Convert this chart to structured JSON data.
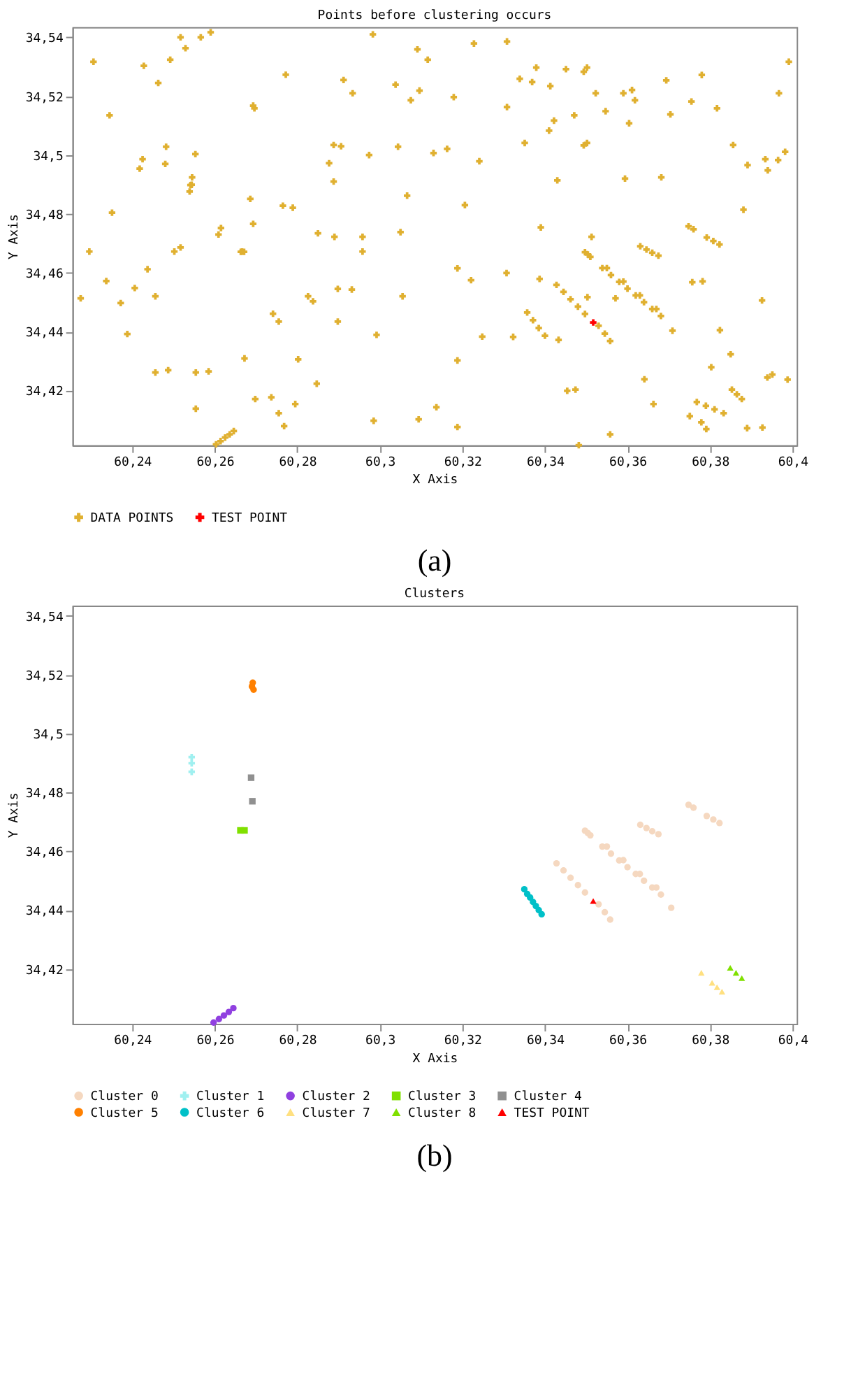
{
  "chart_data": [
    {
      "type": "scatter",
      "title": "Points before clustering occurs",
      "xlabel": "X Axis",
      "ylabel": "Y Axis",
      "xlim": [
        60.2255,
        60.401
      ],
      "ylim": [
        34.4014,
        34.5435
      ],
      "xticks": [
        {
          "value": 60.24,
          "label": "60,24"
        },
        {
          "value": 60.26,
          "label": "60,26"
        },
        {
          "value": 60.28,
          "label": "60,28"
        },
        {
          "value": 60.3,
          "label": "60,3"
        },
        {
          "value": 60.32,
          "label": "60,32"
        },
        {
          "value": 60.34,
          "label": "60,34"
        },
        {
          "value": 60.36,
          "label": "60,36"
        },
        {
          "value": 60.38,
          "label": "60,38"
        },
        {
          "value": 60.4,
          "label": "60,4"
        }
      ],
      "yticks": [
        {
          "value": 34.42,
          "label": "34,42"
        },
        {
          "value": 34.44,
          "label": "34,44"
        },
        {
          "value": 34.46,
          "label": "34,46"
        },
        {
          "value": 34.48,
          "label": "34,48"
        },
        {
          "value": 34.5,
          "label": "34,5"
        },
        {
          "value": 34.52,
          "label": "34,52"
        },
        {
          "value": 34.54,
          "label": "34,54"
        }
      ],
      "grid": false,
      "legend": "bottom",
      "annotations": [
        "(a)"
      ],
      "series": [
        {
          "name": "DATA POINTS",
          "color": "#e0b030",
          "marker": "cross",
          "x": [
            60.2306,
            60.2345,
            60.2351,
            60.2296,
            60.2428,
            60.2463,
            60.2425,
            60.2418,
            60.2482,
            60.248,
            60.2492,
            60.2517,
            60.2566,
            60.259,
            60.2529,
            60.2553,
            60.2545,
            60.2541,
            60.2539,
            60.2615,
            60.2609,
            60.2517,
            60.2502,
            60.2696,
            60.2693,
            60.2686,
            60.2693,
            60.2666,
            60.2772,
            60.2765,
            60.2789,
            60.285,
            60.289,
            60.2888,
            60.2906,
            60.2888,
            60.2877,
            60.2912,
            60.2934,
            60.2958,
            60.2958,
            60.2974,
            60.2983,
            60.3038,
            60.3044,
            60.3066,
            60.305,
            60.3091,
            60.3096,
            60.3075,
            60.3116,
            60.313,
            60.3163,
            60.3179,
            60.3206,
            60.3228,
            60.3241,
            60.3308,
            60.3308,
            60.3339,
            60.3351,
            60.3369,
            60.3379,
            60.339,
            60.341,
            60.3413,
            60.3422,
            60.343,
            60.3451,
            60.3471,
            60.3494,
            60.3502,
            60.3494,
            60.3502,
            60.3513,
            60.3523,
            60.3547,
            60.359,
            60.3594,
            60.3604,
            60.3611,
            60.3618,
            60.3682,
            60.3694,
            60.3704,
            60.3755,
            60.378,
            60.3817,
            60.3856,
            60.3881,
            60.3891,
            60.3934,
            60.394,
            60.3965,
            60.3982,
            60.3967,
            60.3991,
            60.2275,
            60.2337,
            60.2372,
            60.2406,
            60.2388,
            60.2437,
            60.2456,
            60.2456,
            60.2487,
            60.2554,
            60.2554,
            60.2585,
            60.2603,
            60.2614,
            60.2625,
            60.2636,
            60.2646,
            60.2672,
            60.2698,
            60.2741,
            60.2755,
            60.2737,
            60.2755,
            60.2768,
            60.2795,
            60.2802,
            60.2826,
            60.2838,
            60.2847,
            60.2898,
            60.2898,
            60.2932,
            60.2985,
            60.2992,
            60.3055,
            60.3094,
            60.3137,
            60.3188,
            60.3188,
            60.3188,
            60.3221,
            60.3248,
            60.3307,
            60.3323,
            60.3387,
            60.3433,
            60.3454,
            60.3474,
            60.3482,
            60.3503,
            60.3558,
            60.3571,
            60.3641,
            60.3663,
            60.3709,
            60.3751,
            60.3757,
            60.3779,
            60.3782,
            60.3791,
            60.3803,
            60.3824,
            60.385,
            60.3926,
            60.3988,
            60.3357,
            60.3371,
            60.3385,
            60.34,
            60.3539,
            60.356,
            60.358,
            60.36,
            60.362,
            60.364,
            60.366,
            60.3681,
            60.355,
            60.359,
            60.363,
            60.367,
            60.3428,
            60.3445,
            60.3462,
            60.348,
            60.3497,
            60.353,
            60.3545,
            60.3558,
            60.3497,
            60.3504,
            60.351,
            60.3631,
            60.3646,
            60.366,
            60.3675,
            60.3748,
            60.376,
            60.3792,
            60.3808,
            60.3823,
            60.3768,
            60.379,
            60.3811,
            60.3833,
            60.3853,
            60.3865,
            60.3877,
            60.3939,
            60.3951,
            60.389,
            60.3927,
            60.2663,
            60.2671,
            60.2544
          ],
          "values": [
            34.5317,
            34.5135,
            34.4804,
            34.4672,
            34.5303,
            34.5245,
            34.4986,
            34.4954,
            34.5028,
            34.497,
            34.5324,
            34.54,
            34.54,
            34.5417,
            34.5363,
            34.5003,
            34.4924,
            34.4898,
            34.4876,
            34.4752,
            34.473,
            34.4686,
            34.4672,
            34.5159,
            34.5168,
            34.4851,
            34.4766,
            34.4672,
            34.5273,
            34.4828,
            34.4821,
            34.4734,
            34.4722,
            34.5034,
            34.503,
            34.491,
            34.4972,
            34.5255,
            34.521,
            34.4722,
            34.4672,
            34.5,
            34.541,
            34.5239,
            34.5028,
            34.4862,
            34.4738,
            34.5359,
            34.5219,
            34.5186,
            34.5324,
            34.5007,
            34.5021,
            34.5197,
            34.483,
            34.5379,
            34.4979,
            34.5386,
            34.5163,
            34.5259,
            34.5041,
            34.5248,
            34.5297,
            34.4754,
            34.5083,
            34.5234,
            34.5117,
            34.4914,
            34.5292,
            34.5135,
            34.5283,
            34.5297,
            34.5033,
            34.5041,
            34.4722,
            34.521,
            34.5149,
            34.521,
            34.492,
            34.5108,
            34.5221,
            34.5186,
            34.4924,
            34.5254,
            34.5138,
            34.5182,
            34.5272,
            34.5159,
            34.5034,
            34.4814,
            34.4966,
            34.4986,
            34.4948,
            34.4983,
            34.5011,
            34.521,
            34.5317,
            34.4513,
            34.4572,
            34.4497,
            34.4548,
            34.4392,
            34.4612,
            34.452,
            34.4261,
            34.4269,
            34.4261,
            34.4138,
            34.4265,
            34.4017,
            34.4028,
            34.404,
            34.4051,
            34.4062,
            34.4309,
            34.4171,
            34.4461,
            34.4434,
            34.4177,
            34.4123,
            34.4079,
            34.4154,
            34.4306,
            34.452,
            34.4503,
            34.4223,
            34.4545,
            34.4434,
            34.4543,
            34.4097,
            34.4389,
            34.452,
            34.4102,
            34.4143,
            34.4615,
            34.4302,
            34.4076,
            34.4575,
            34.4383,
            34.4599,
            34.4382,
            34.4579,
            34.4372,
            34.4199,
            34.4203,
            34.4014,
            34.4517,
            34.4051,
            34.4513,
            34.4238,
            34.4154,
            34.4403,
            34.4113,
            34.4568,
            34.4092,
            34.4571,
            34.4069,
            34.4279,
            34.4405,
            34.4323,
            34.4506,
            34.4237,
            34.4465,
            34.4439,
            34.4412,
            34.4386,
            34.4616,
            34.4592,
            34.4569,
            34.4546,
            34.4523,
            34.45,
            34.4477,
            34.4453,
            34.4616,
            34.457,
            34.4523,
            34.4477,
            34.4559,
            34.4535,
            34.451,
            34.4485,
            34.446,
            34.442,
            34.4393,
            34.4368,
            34.467,
            34.4662,
            34.4654,
            34.469,
            34.4679,
            34.4668,
            34.4658,
            34.4758,
            34.4748,
            34.472,
            34.4708,
            34.4696,
            34.4161,
            34.4148,
            34.4136,
            34.4123,
            34.4203,
            34.4187,
            34.4171,
            34.4244,
            34.4254,
            34.4072,
            34.4074,
            34.4671,
            34.4671,
            34.4899
          ]
        },
        {
          "name": "TEST POINT",
          "color": "#ff0000",
          "marker": "cross",
          "x": [
            60.3517
          ],
          "values": [
            34.4431
          ]
        }
      ]
    },
    {
      "type": "scatter",
      "title": "Clusters",
      "xlabel": "X Axis",
      "ylabel": "Y Axis",
      "xlim": [
        60.2255,
        60.401
      ],
      "ylim": [
        34.4014,
        34.5435
      ],
      "xticks": [
        {
          "value": 60.24,
          "label": "60,24"
        },
        {
          "value": 60.26,
          "label": "60,26"
        },
        {
          "value": 60.28,
          "label": "60,28"
        },
        {
          "value": 60.3,
          "label": "60,3"
        },
        {
          "value": 60.32,
          "label": "60,32"
        },
        {
          "value": 60.34,
          "label": "60,34"
        },
        {
          "value": 60.36,
          "label": "60,36"
        },
        {
          "value": 60.38,
          "label": "60,38"
        },
        {
          "value": 60.4,
          "label": "60,4"
        }
      ],
      "yticks": [
        {
          "value": 34.42,
          "label": "34,42"
        },
        {
          "value": 34.44,
          "label": "34,44"
        },
        {
          "value": 34.46,
          "label": "34,46"
        },
        {
          "value": 34.48,
          "label": "34,48"
        },
        {
          "value": 34.5,
          "label": "34,5"
        },
        {
          "value": 34.52,
          "label": "34,52"
        },
        {
          "value": 34.54,
          "label": "34,54"
        }
      ],
      "grid": false,
      "legend": "bottom",
      "annotations": [
        "(b)"
      ],
      "series": [
        {
          "name": "Cluster 0",
          "color": "#f5d8c0",
          "marker": "circle",
          "x": [
            60.3539,
            60.356,
            60.358,
            60.36,
            60.362,
            60.364,
            60.366,
            60.3681,
            60.355,
            60.359,
            60.363,
            60.367,
            60.3428,
            60.3445,
            60.3462,
            60.348,
            60.3497,
            60.353,
            60.3545,
            60.3558,
            60.3497,
            60.3504,
            60.351,
            60.3631,
            60.3646,
            60.366,
            60.3675,
            60.3748,
            60.376,
            60.3792,
            60.3808,
            60.3823,
            60.3706
          ],
          "values": [
            34.4616,
            34.4592,
            34.4569,
            34.4546,
            34.4523,
            34.45,
            34.4477,
            34.4453,
            34.4616,
            34.457,
            34.4523,
            34.4477,
            34.4559,
            34.4535,
            34.451,
            34.4485,
            34.446,
            34.442,
            34.4393,
            34.4368,
            34.467,
            34.4662,
            34.4654,
            34.469,
            34.4679,
            34.4668,
            34.4658,
            34.4758,
            34.4748,
            34.472,
            34.4708,
            34.4696,
            34.4408
          ]
        },
        {
          "name": "Cluster 1",
          "color": "#a0f0f0",
          "marker": "cross",
          "x": [
            60.2544,
            60.2544,
            60.2544
          ],
          "values": [
            34.4899,
            34.492,
            34.487
          ]
        },
        {
          "name": "Cluster 2",
          "color": "#9040e0",
          "marker": "circle",
          "x": [
            60.2597,
            60.261,
            60.2622,
            60.2634,
            60.2645
          ],
          "values": [
            34.4018,
            34.403,
            34.4042,
            34.4054,
            34.4067
          ]
        },
        {
          "name": "Cluster 3",
          "color": "#80e000",
          "marker": "square",
          "x": [
            60.2662,
            60.2672
          ],
          "values": [
            34.4671,
            34.4671
          ]
        },
        {
          "name": "Cluster 4",
          "color": "#909090",
          "marker": "square",
          "x": [
            60.2688,
            60.2691
          ],
          "values": [
            34.485,
            34.477
          ]
        },
        {
          "name": "Cluster 5",
          "color": "#ff8000",
          "marker": "circle",
          "x": [
            60.2692,
            60.269,
            60.2694
          ],
          "values": [
            34.5173,
            34.516,
            34.5149
          ]
        },
        {
          "name": "Cluster 6",
          "color": "#00c0c8",
          "marker": "circle",
          "x": [
            60.335,
            60.3357,
            60.3364,
            60.3371,
            60.3378,
            60.3385,
            60.3392
          ],
          "values": [
            34.4471,
            34.4455,
            34.4443,
            34.4428,
            34.4414,
            34.44,
            34.4386
          ]
        },
        {
          "name": "Cluster 7",
          "color": "#ffe080",
          "marker": "triangle",
          "x": [
            60.3779,
            60.3805,
            60.3817,
            60.3829
          ],
          "values": [
            34.4187,
            34.4153,
            34.4138,
            34.4123
          ]
        },
        {
          "name": "Cluster 8",
          "color": "#80e000",
          "marker": "triangle",
          "x": [
            60.3849,
            60.3863,
            60.3877
          ],
          "values": [
            34.4204,
            34.4187,
            34.4169
          ]
        },
        {
          "name": "TEST POINT",
          "color": "#ff0000",
          "marker": "triangle",
          "x": [
            60.3517
          ],
          "values": [
            34.4431
          ]
        }
      ]
    }
  ]
}
